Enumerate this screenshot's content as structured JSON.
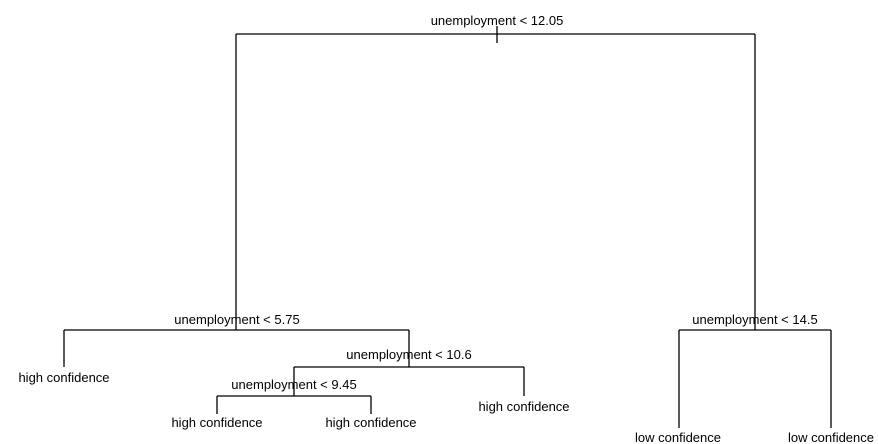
{
  "tree": {
    "root": {
      "label": "unemployment < 12.05",
      "left": {
        "label": "unemployment < 5.75",
        "left": {
          "leaf": "high confidence"
        },
        "right": {
          "label": "unemployment < 10.6",
          "left": {
            "label": "unemployment < 9.45",
            "left": {
              "leaf": "high confidence"
            },
            "right": {
              "leaf": "high confidence"
            }
          },
          "right": {
            "leaf": "high confidence"
          }
        }
      },
      "right": {
        "label": "unemployment < 14.5",
        "left": {
          "leaf": "low confidence"
        },
        "right": {
          "leaf": "low confidence"
        }
      }
    }
  }
}
